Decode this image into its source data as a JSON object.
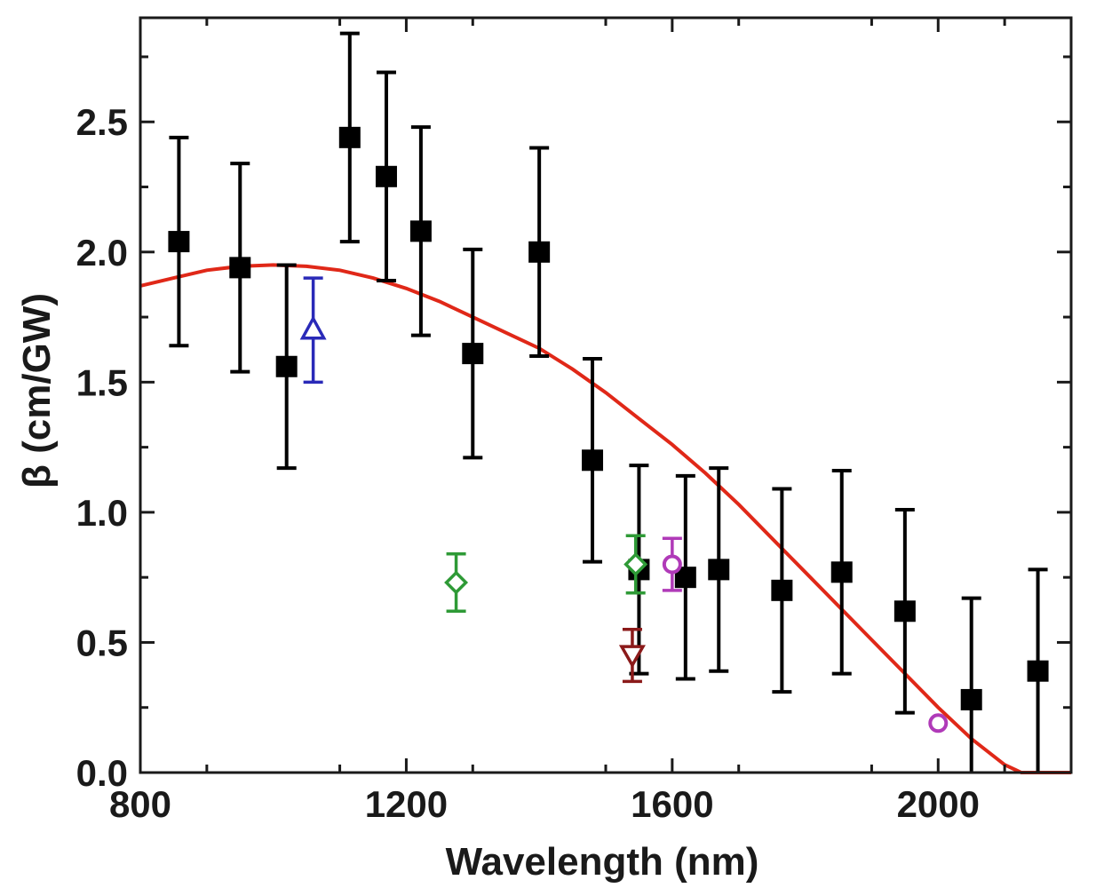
{
  "chart_data": {
    "type": "scatter",
    "title": "",
    "xlabel": "Wavelength (nm)",
    "ylabel": "β (cm/GW)",
    "xlim": [
      800,
      2200
    ],
    "ylim": [
      0,
      2.9
    ],
    "xticks": [
      800,
      1200,
      1600,
      2000
    ],
    "xtick_labels": [
      "800",
      "1200",
      "1600",
      "2000"
    ],
    "yticks": [
      0,
      0.5,
      1.0,
      1.5,
      2.0,
      2.5
    ],
    "ytick_labels": [
      "0.0",
      "0.5",
      "1.0",
      "1.5",
      "2.0",
      "2.5"
    ],
    "grid": false,
    "legend": "none",
    "series": [
      {
        "marker": "filled-square",
        "color": "#000000",
        "points": [
          {
            "x": 858,
            "y": 2.04,
            "err": 0.4
          },
          {
            "x": 950,
            "y": 1.94,
            "err": 0.4
          },
          {
            "x": 1020,
            "y": 1.56,
            "err": 0.39
          },
          {
            "x": 1115,
            "y": 2.44,
            "err": 0.4
          },
          {
            "x": 1170,
            "y": 2.29,
            "err": 0.4
          },
          {
            "x": 1222,
            "y": 2.08,
            "err": 0.4
          },
          {
            "x": 1300,
            "y": 1.61,
            "err": 0.4
          },
          {
            "x": 1400,
            "y": 2.0,
            "err": 0.4
          },
          {
            "x": 1480,
            "y": 1.2,
            "err": 0.39
          },
          {
            "x": 1550,
            "y": 0.78,
            "err": 0.4
          },
          {
            "x": 1620,
            "y": 0.75,
            "err": 0.39
          },
          {
            "x": 1670,
            "y": 0.78,
            "err": 0.39
          },
          {
            "x": 1765,
            "y": 0.7,
            "err": 0.39
          },
          {
            "x": 1855,
            "y": 0.77,
            "err": 0.39
          },
          {
            "x": 1950,
            "y": 0.62,
            "err": 0.39
          },
          {
            "x": 2050,
            "y": 0.28,
            "err": 0.39
          },
          {
            "x": 2150,
            "y": 0.39,
            "err": 0.39
          }
        ]
      },
      {
        "marker": "open-triangle-up",
        "color": "#2a2ab8",
        "points": [
          {
            "x": 1060,
            "y": 1.7,
            "err": 0.2
          }
        ]
      },
      {
        "marker": "open-diamond",
        "color": "#2e9a36",
        "points": [
          {
            "x": 1275,
            "y": 0.73,
            "err": 0.11
          },
          {
            "x": 1545,
            "y": 0.8,
            "err": 0.11
          }
        ]
      },
      {
        "marker": "open-triangle-down",
        "color": "#8b1a1a",
        "points": [
          {
            "x": 1540,
            "y": 0.45,
            "err": 0.1
          }
        ]
      },
      {
        "marker": "open-circle",
        "color": "#b03ab8",
        "points": [
          {
            "x": 1600,
            "y": 0.8,
            "err": 0.1
          },
          {
            "x": 2000,
            "y": 0.19,
            "err": 0
          }
        ]
      }
    ],
    "fit_curve": {
      "color": "#e02818",
      "points": [
        [
          800,
          1.87
        ],
        [
          850,
          1.9
        ],
        [
          900,
          1.93
        ],
        [
          950,
          1.945
        ],
        [
          1000,
          1.95
        ],
        [
          1050,
          1.945
        ],
        [
          1100,
          1.93
        ],
        [
          1150,
          1.9
        ],
        [
          1200,
          1.86
        ],
        [
          1250,
          1.81
        ],
        [
          1300,
          1.75
        ],
        [
          1350,
          1.69
        ],
        [
          1400,
          1.63
        ],
        [
          1450,
          1.55
        ],
        [
          1500,
          1.46
        ],
        [
          1550,
          1.36
        ],
        [
          1600,
          1.26
        ],
        [
          1650,
          1.15
        ],
        [
          1700,
          1.03
        ],
        [
          1750,
          0.9
        ],
        [
          1800,
          0.77
        ],
        [
          1850,
          0.64
        ],
        [
          1900,
          0.51
        ],
        [
          1950,
          0.38
        ],
        [
          2000,
          0.25
        ],
        [
          2050,
          0.13
        ],
        [
          2100,
          0.03
        ],
        [
          2125,
          0.0
        ],
        [
          2200,
          0.0
        ]
      ]
    }
  }
}
